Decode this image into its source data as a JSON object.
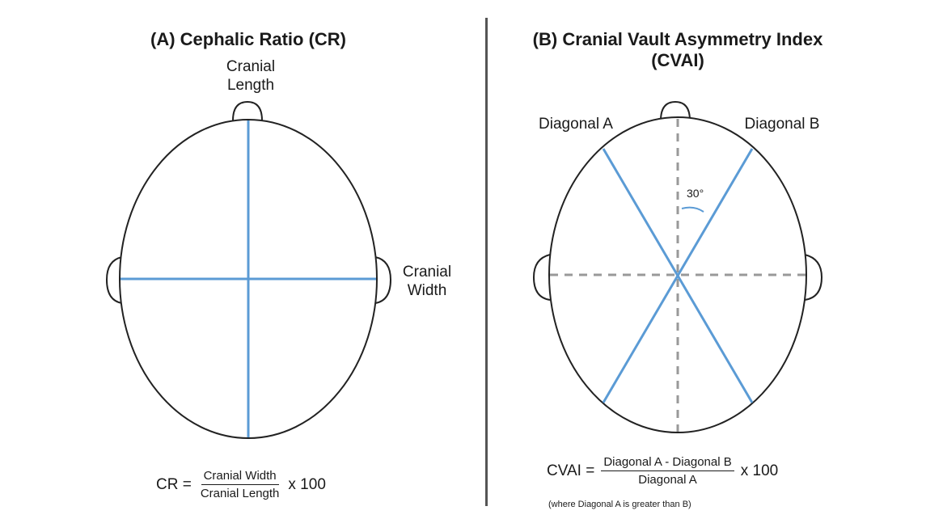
{
  "panel_a": {
    "title": "(A) Cephalic Ratio (CR)",
    "label_length_line1": "Cranial",
    "label_length_line2": "Length",
    "label_width_line1": "Cranial",
    "label_width_line2": "Width",
    "formula": {
      "lhs": "CR =",
      "numerator": "Cranial Width",
      "denominator": "Cranial Length",
      "multiplier": "x 100"
    }
  },
  "panel_b": {
    "title_line1": "(B) Cranial Vault Asymmetry Index",
    "title_line2": "(CVAI)",
    "label_diag_a": "Diagonal A",
    "label_diag_b": "Diagonal B",
    "angle_label": "30°",
    "formula": {
      "lhs": "CVAI =",
      "numerator": "Diagonal A - Diagonal B",
      "denominator": "Diagonal A",
      "multiplier": "x 100"
    },
    "note": "(where Diagonal A is greater than B)"
  },
  "colors": {
    "measure_line": "#5b9bd5",
    "reference_line": "#999999",
    "outline": "#222222"
  }
}
